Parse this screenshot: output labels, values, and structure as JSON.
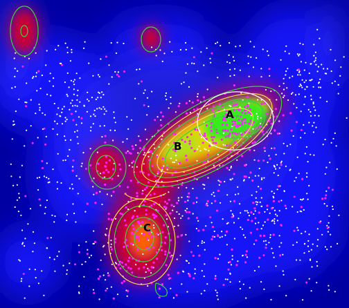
{
  "figure": {
    "labels": {
      "a": "A",
      "b": "B",
      "c": "C"
    },
    "colors": {
      "background_deep": "#0000a0",
      "background_mid": "#1414ff",
      "density_red": "#cc0033",
      "density_orange": "#ff6600",
      "density_yellow": "#e6e600",
      "density_green": "#22ee22",
      "contour_green": "#3cd23c",
      "contour_yellow": "#ffe040",
      "contour_white": "#ffffff",
      "point_white": "#ffffff",
      "point_magenta": "#ff22ff"
    },
    "point_sets": [
      "white-dots",
      "magenta-dots"
    ]
  }
}
